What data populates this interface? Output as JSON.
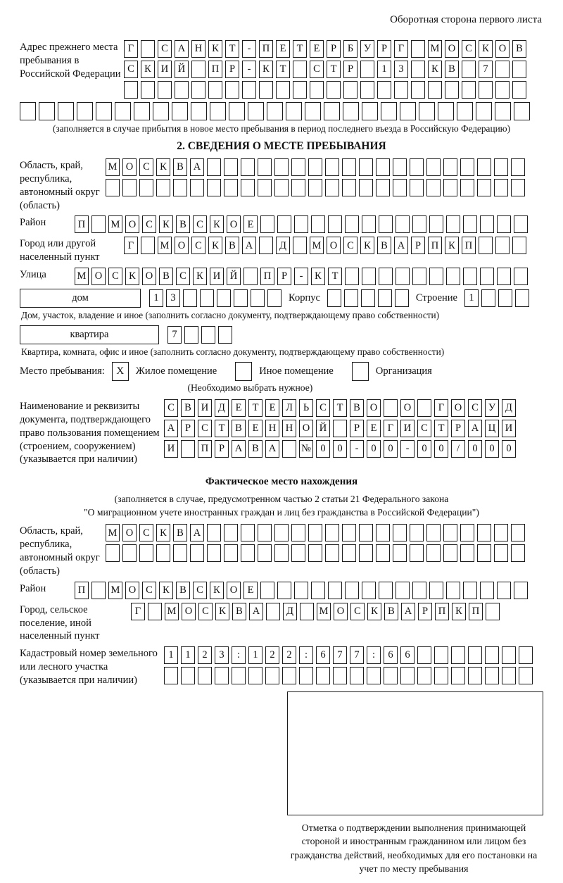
{
  "colors": {
    "ink": "#1c1c1c",
    "paper": "#ffffff"
  },
  "header": {
    "note": "Оборотная сторона первого листа"
  },
  "prev_address": {
    "label": "Адрес прежнего места пребывания в Российской Федерации",
    "rows": [
      "Г САНКТ-ПЕТЕРБУРГ МОСКОВ",
      "СКИЙ ПР-КТ СТР 13 КВ 7",
      "",
      ""
    ],
    "caption": "(заполняется в случае прибытия в новое место пребывания в период последнего въезда в Российскую Федерацию)"
  },
  "section2": {
    "title": "2. СВЕДЕНИЯ О МЕСТЕ ПРЕБЫВАНИЯ",
    "region": {
      "label": "Область, край, республика, автономный округ (область)",
      "rows": [
        "МОСКВА",
        ""
      ]
    },
    "district": {
      "label": "Район",
      "row": "П МОСКВСКОЕ"
    },
    "city": {
      "label": "Город или другой населенный пункт",
      "row": "Г МОСКВА Д МОСКВАРПКП"
    },
    "street": {
      "label": "Улица",
      "row": "МОСКОВСКИЙ ПР-КТ"
    },
    "house": {
      "box_label": "дом",
      "cells": "13",
      "korpus_label": "Корпус",
      "korpus_cells": "",
      "stroenie_label": "Строение",
      "stroenie_cells": "1",
      "caption": "Дом, участок, владение и иное (заполнить согласно документу, подтверждающему право собственности)"
    },
    "apartment": {
      "box_label": "квартира",
      "cells": "7",
      "caption": "Квартира, комната, офис и иное (заполнить согласно документу, подтверждающему право собственности)"
    },
    "stay": {
      "label": "Место пребывания:",
      "options": [
        {
          "mark": "X",
          "label": "Жилое помещение"
        },
        {
          "mark": "",
          "label": "Иное помещение"
        },
        {
          "mark": "",
          "label": "Организация"
        }
      ],
      "note": "(Необходимо выбрать нужное)"
    },
    "document": {
      "label": "Наименование и реквизиты документа, подтверждающего право пользования помещением (строением, сооружением) (указывается при наличии)",
      "rows": [
        "СВИДЕТЕЛЬСТВО О ГОСУД",
        "АРСТВЕННОЙ РЕГИСТРАЦИ",
        "И ПРАВА №00-00-00/000"
      ]
    }
  },
  "actual_location": {
    "title": "Фактическое место нахождения",
    "caption1": "(заполняется в случае, предусмотренном частью 2 статьи 21 Федерального закона",
    "caption2": "\"О миграционном учете иностранных граждан и лиц без гражданства в Российской Федерации\")",
    "region": {
      "label": "Область, край, республика, автономный округ (область)",
      "rows": [
        "МОСКВА",
        ""
      ]
    },
    "district": {
      "label": "Район",
      "row": "П МОСКВСКОЕ"
    },
    "city": {
      "label": "Город, сельское поселение, иной населенный пункт",
      "row": "Г МОСКВА Д МОСКВАРПКП"
    },
    "cadastral": {
      "label": "Кадастровый номер земельного или лесного участка (указывается при наличии)",
      "rows": [
        "1123:122:677:66",
        ""
      ]
    }
  },
  "stamp": {
    "caption": "Отметка о подтверждении выполнения принимающей стороной и иностранным гражданином или лицом без гражданства действий, необходимых для его постановки на учет по месту пребывания"
  }
}
